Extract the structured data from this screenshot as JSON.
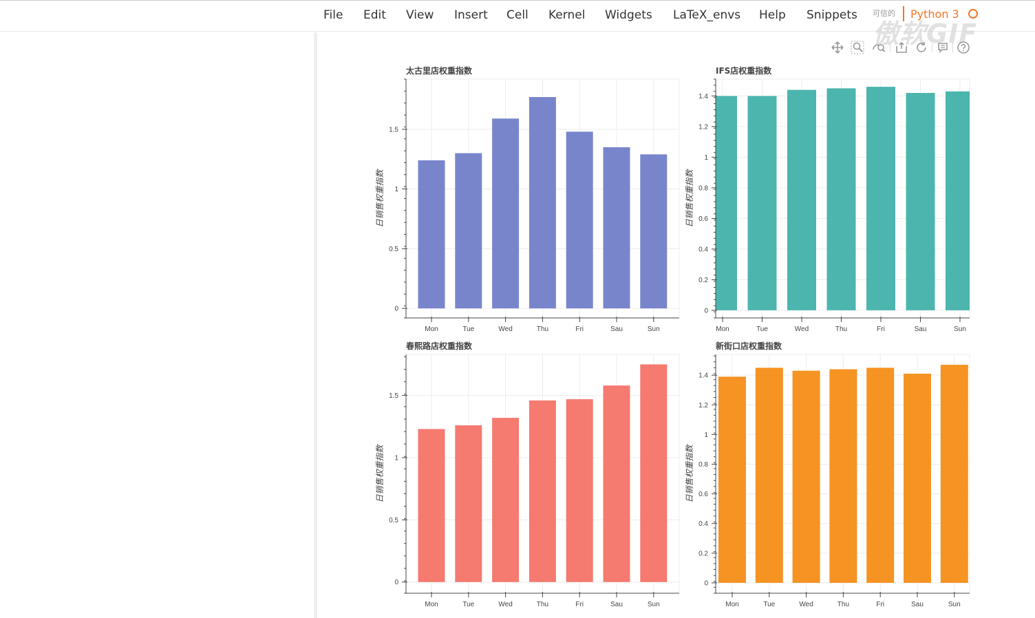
{
  "menu": {
    "items": [
      "File",
      "Edit",
      "View",
      "Insert",
      "Cell",
      "Kernel",
      "Widgets",
      "LaTeX_envs",
      "Help",
      "Snippets"
    ],
    "trusted_label": "可信的",
    "kernel_name": "Python 3"
  },
  "watermark": "傲软GIF",
  "toolbar": {
    "icons": [
      "pan-icon",
      "box-zoom-icon",
      "wheel-zoom-icon",
      "save-icon",
      "reset-icon",
      "hover-icon",
      "help-icon"
    ]
  },
  "colors": {
    "series": [
      "#7985cb",
      "#4cb5ae",
      "#f57a70",
      "#f59323"
    ],
    "grid": "#ececec",
    "axis": "#444444"
  },
  "chart_data": [
    {
      "type": "bar",
      "title": "太古里店权重指数",
      "ylabel": "日销售权重指数",
      "xlabel": "",
      "categories": [
        "Mon",
        "Tue",
        "Wed",
        "Thu",
        "Fri",
        "Sau",
        "Sun"
      ],
      "values": [
        1.24,
        1.3,
        1.59,
        1.77,
        1.48,
        1.35,
        1.29
      ],
      "ylim": [
        -0.08,
        1.92
      ],
      "yticks": [
        0,
        0.5,
        1,
        1.5
      ],
      "yticklabels": [
        "0",
        "0.5",
        "1",
        "1.5"
      ],
      "grid": true
    },
    {
      "type": "bar",
      "title": "IFS店权重指数",
      "ylabel": "日销售权重指数",
      "xlabel": "",
      "categories": [
        "Mon",
        "Tue",
        "Wed",
        "Thu",
        "Fri",
        "Sau",
        "Sun"
      ],
      "values": [
        1.4,
        1.4,
        1.44,
        1.45,
        1.46,
        1.42,
        1.43
      ],
      "ylim": [
        -0.05,
        1.51
      ],
      "yticks": [
        0,
        0.2,
        0.4,
        0.6,
        0.8,
        1,
        1.2,
        1.4
      ],
      "yticklabels": [
        "0",
        "0.2",
        "0.4",
        "0.6",
        "0.8",
        "1",
        "1.2",
        "1.4"
      ],
      "grid": true
    },
    {
      "type": "bar",
      "title": "春熙路店权重指数",
      "ylabel": "日销售权重指数",
      "xlabel": "",
      "categories": [
        "Mon",
        "Tue",
        "Wed",
        "Thu",
        "Fri",
        "Sau",
        "Sun"
      ],
      "values": [
        1.23,
        1.26,
        1.32,
        1.46,
        1.47,
        1.58,
        1.75
      ],
      "ylim": [
        -0.09,
        1.83
      ],
      "yticks": [
        0,
        0.5,
        1,
        1.5
      ],
      "yticklabels": [
        "0",
        "0.5",
        "1",
        "1.5"
      ],
      "grid": true
    },
    {
      "type": "bar",
      "title": "新街口店权重指数",
      "ylabel": "日销售权重指数",
      "xlabel": "",
      "categories": [
        "Mon",
        "Tue",
        "Wed",
        "Thu",
        "Fri",
        "Sau",
        "Sun"
      ],
      "values": [
        1.39,
        1.45,
        1.43,
        1.44,
        1.45,
        1.41,
        1.47
      ],
      "ylim": [
        -0.07,
        1.54
      ],
      "yticks": [
        0,
        0.2,
        0.4,
        0.6,
        0.8,
        1,
        1.2,
        1.4
      ],
      "yticklabels": [
        "0",
        "0.2",
        "0.4",
        "0.6",
        "0.8",
        "1",
        "1.2",
        "1.4"
      ],
      "grid": true
    }
  ]
}
